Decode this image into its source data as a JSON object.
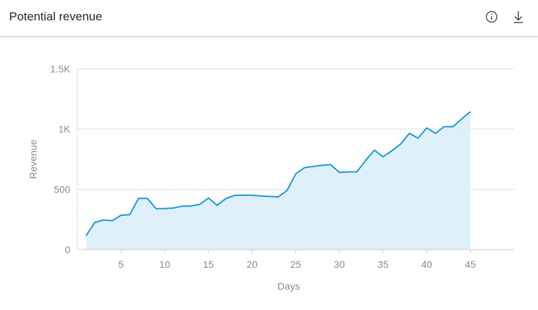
{
  "header": {
    "title": "Potential revenue",
    "info_icon": "info-icon",
    "download_icon": "download-icon"
  },
  "colors": {
    "line": "#1a9ad6",
    "area": "#dbeef9",
    "grid": "#dcdcdc",
    "tick_text": "#8a8a8a"
  },
  "chart_data": {
    "type": "area",
    "title": "",
    "xlabel": "Days",
    "ylabel": "Revenue",
    "xlim": [
      0,
      50
    ],
    "ylim": [
      0,
      1500
    ],
    "x_ticks": [
      5,
      10,
      15,
      20,
      25,
      30,
      35,
      40,
      45
    ],
    "x_tick_labels": [
      "5",
      "10",
      "15",
      "20",
      "25",
      "30",
      "35",
      "40",
      "45"
    ],
    "y_ticks": [
      0,
      500,
      1000,
      1500
    ],
    "y_tick_labels": [
      "0",
      "500",
      "1K",
      "1.5K"
    ],
    "grid": true,
    "x": [
      1,
      2,
      3,
      4,
      5,
      6,
      7,
      8,
      9,
      10,
      11,
      12,
      13,
      14,
      15,
      16,
      17,
      18,
      19,
      20,
      21,
      22,
      23,
      24,
      25,
      26,
      27,
      28,
      29,
      30,
      31,
      32,
      33,
      34,
      35,
      36,
      37,
      38,
      39,
      40,
      41,
      42,
      43,
      44,
      45
    ],
    "values": [
      115,
      225,
      245,
      240,
      285,
      290,
      425,
      425,
      340,
      340,
      345,
      360,
      362,
      375,
      428,
      367,
      424,
      450,
      452,
      451,
      445,
      441,
      437,
      490,
      628,
      680,
      690,
      700,
      705,
      640,
      645,
      645,
      740,
      825,
      770,
      820,
      875,
      965,
      925,
      1010,
      965,
      1020,
      1020,
      1085,
      1145
    ]
  }
}
